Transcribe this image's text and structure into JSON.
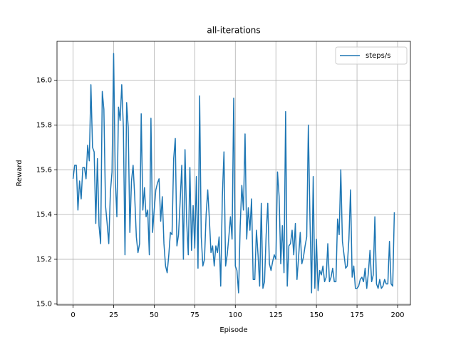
{
  "chart_data": {
    "type": "line",
    "title": "all-iterations",
    "xlabel": "Episode",
    "ylabel": "Reward",
    "x": [
      0,
      1,
      2,
      3,
      4,
      5,
      6,
      7,
      8,
      9,
      10,
      11,
      12,
      13,
      14,
      15,
      16,
      17,
      18,
      19,
      20,
      21,
      22,
      23,
      24,
      25,
      26,
      27,
      28,
      29,
      30,
      31,
      32,
      33,
      34,
      35,
      36,
      37,
      38,
      39,
      40,
      41,
      42,
      43,
      44,
      45,
      46,
      47,
      48,
      49,
      50,
      51,
      52,
      53,
      54,
      55,
      56,
      57,
      58,
      59,
      60,
      61,
      62,
      63,
      64,
      65,
      66,
      67,
      68,
      69,
      70,
      71,
      72,
      73,
      74,
      75,
      76,
      77,
      78,
      79,
      80,
      81,
      82,
      83,
      84,
      85,
      86,
      87,
      88,
      89,
      90,
      91,
      92,
      93,
      94,
      95,
      96,
      97,
      98,
      99,
      100,
      101,
      102,
      103,
      104,
      105,
      106,
      107,
      108,
      109,
      110,
      111,
      112,
      113,
      114,
      115,
      116,
      117,
      118,
      119,
      120,
      121,
      122,
      123,
      124,
      125,
      126,
      127,
      128,
      129,
      130,
      131,
      132,
      133,
      134,
      135,
      136,
      137,
      138,
      139,
      140,
      141,
      142,
      143,
      144,
      145,
      146,
      147,
      148,
      149,
      150,
      151,
      152,
      153,
      154,
      155,
      156,
      157,
      158,
      159,
      160,
      161,
      162,
      163,
      164,
      165,
      166,
      167,
      168,
      169,
      170,
      171,
      172,
      173,
      174,
      175,
      176,
      177,
      178,
      179,
      180,
      181,
      182,
      183,
      184,
      185,
      186,
      187,
      188,
      189,
      190,
      191,
      192,
      193,
      194,
      195,
      196,
      197,
      198
    ],
    "series": [
      {
        "name": "steps/s",
        "color": "#1f77b4",
        "values": [
          15.56,
          15.62,
          15.62,
          15.42,
          15.55,
          15.47,
          15.61,
          15.61,
          15.56,
          15.71,
          15.64,
          15.98,
          15.7,
          15.68,
          15.36,
          15.65,
          15.35,
          15.27,
          15.95,
          15.87,
          15.44,
          15.36,
          15.27,
          15.5,
          15.59,
          16.12,
          15.56,
          15.39,
          15.88,
          15.82,
          15.98,
          15.79,
          15.22,
          15.9,
          15.79,
          15.32,
          15.55,
          15.62,
          15.48,
          15.3,
          15.23,
          15.27,
          15.85,
          15.42,
          15.52,
          15.39,
          15.42,
          15.22,
          15.83,
          15.32,
          15.42,
          15.51,
          15.54,
          15.56,
          15.37,
          15.48,
          15.27,
          15.17,
          15.14,
          15.22,
          15.32,
          15.31,
          15.65,
          15.74,
          15.26,
          15.31,
          15.46,
          15.62,
          15.2,
          15.69,
          15.37,
          15.22,
          15.61,
          15.24,
          15.44,
          15.25,
          15.57,
          15.16,
          15.93,
          15.3,
          15.17,
          15.2,
          15.4,
          15.51,
          15.38,
          15.23,
          15.26,
          15.17,
          15.26,
          15.23,
          15.3,
          15.08,
          15.48,
          15.68,
          15.17,
          15.22,
          15.3,
          15.39,
          15.29,
          15.92,
          15.17,
          15.15,
          15.05,
          15.35,
          15.53,
          15.42,
          15.76,
          15.29,
          15.43,
          15.33,
          15.47,
          15.11,
          15.11,
          15.33,
          15.22,
          15.08,
          15.45,
          15.07,
          15.1,
          15.31,
          15.45,
          15.18,
          15.15,
          15.19,
          15.22,
          15.2,
          15.59,
          15.48,
          15.18,
          15.35,
          15.14,
          15.86,
          15.08,
          15.26,
          15.27,
          15.33,
          15.22,
          15.36,
          15.11,
          15.21,
          15.32,
          15.18,
          15.21,
          15.26,
          15.3,
          15.8,
          15.38,
          15.05,
          15.57,
          15.07,
          15.29,
          15.06,
          15.15,
          15.13,
          15.17,
          15.1,
          15.12,
          15.27,
          15.1,
          15.12,
          15.16,
          15.1,
          15.1,
          15.38,
          15.31,
          15.6,
          15.28,
          15.22,
          15.16,
          15.17,
          15.29,
          15.51,
          15.12,
          15.17,
          15.07,
          15.07,
          15.08,
          15.11,
          15.12,
          15.1,
          15.16,
          15.07,
          15.14,
          15.24,
          15.1,
          15.13,
          15.39,
          15.09,
          15.07,
          15.11,
          15.07,
          15.08,
          15.11,
          15.09,
          15.09,
          15.28,
          15.09,
          15.08,
          15.41
        ]
      }
    ],
    "xlim": [
      -9.9,
      207.9
    ],
    "ylim": [
      14.996,
      16.174
    ],
    "xticks": [
      0,
      25,
      50,
      75,
      100,
      125,
      150,
      175,
      200
    ],
    "yticks": [
      {
        "value": 15,
        "label": "15.0"
      },
      15.2,
      15.4,
      15.6,
      15.8,
      {
        "value": 16,
        "label": "16.0"
      }
    ],
    "grid": true,
    "legend": "upper right"
  }
}
